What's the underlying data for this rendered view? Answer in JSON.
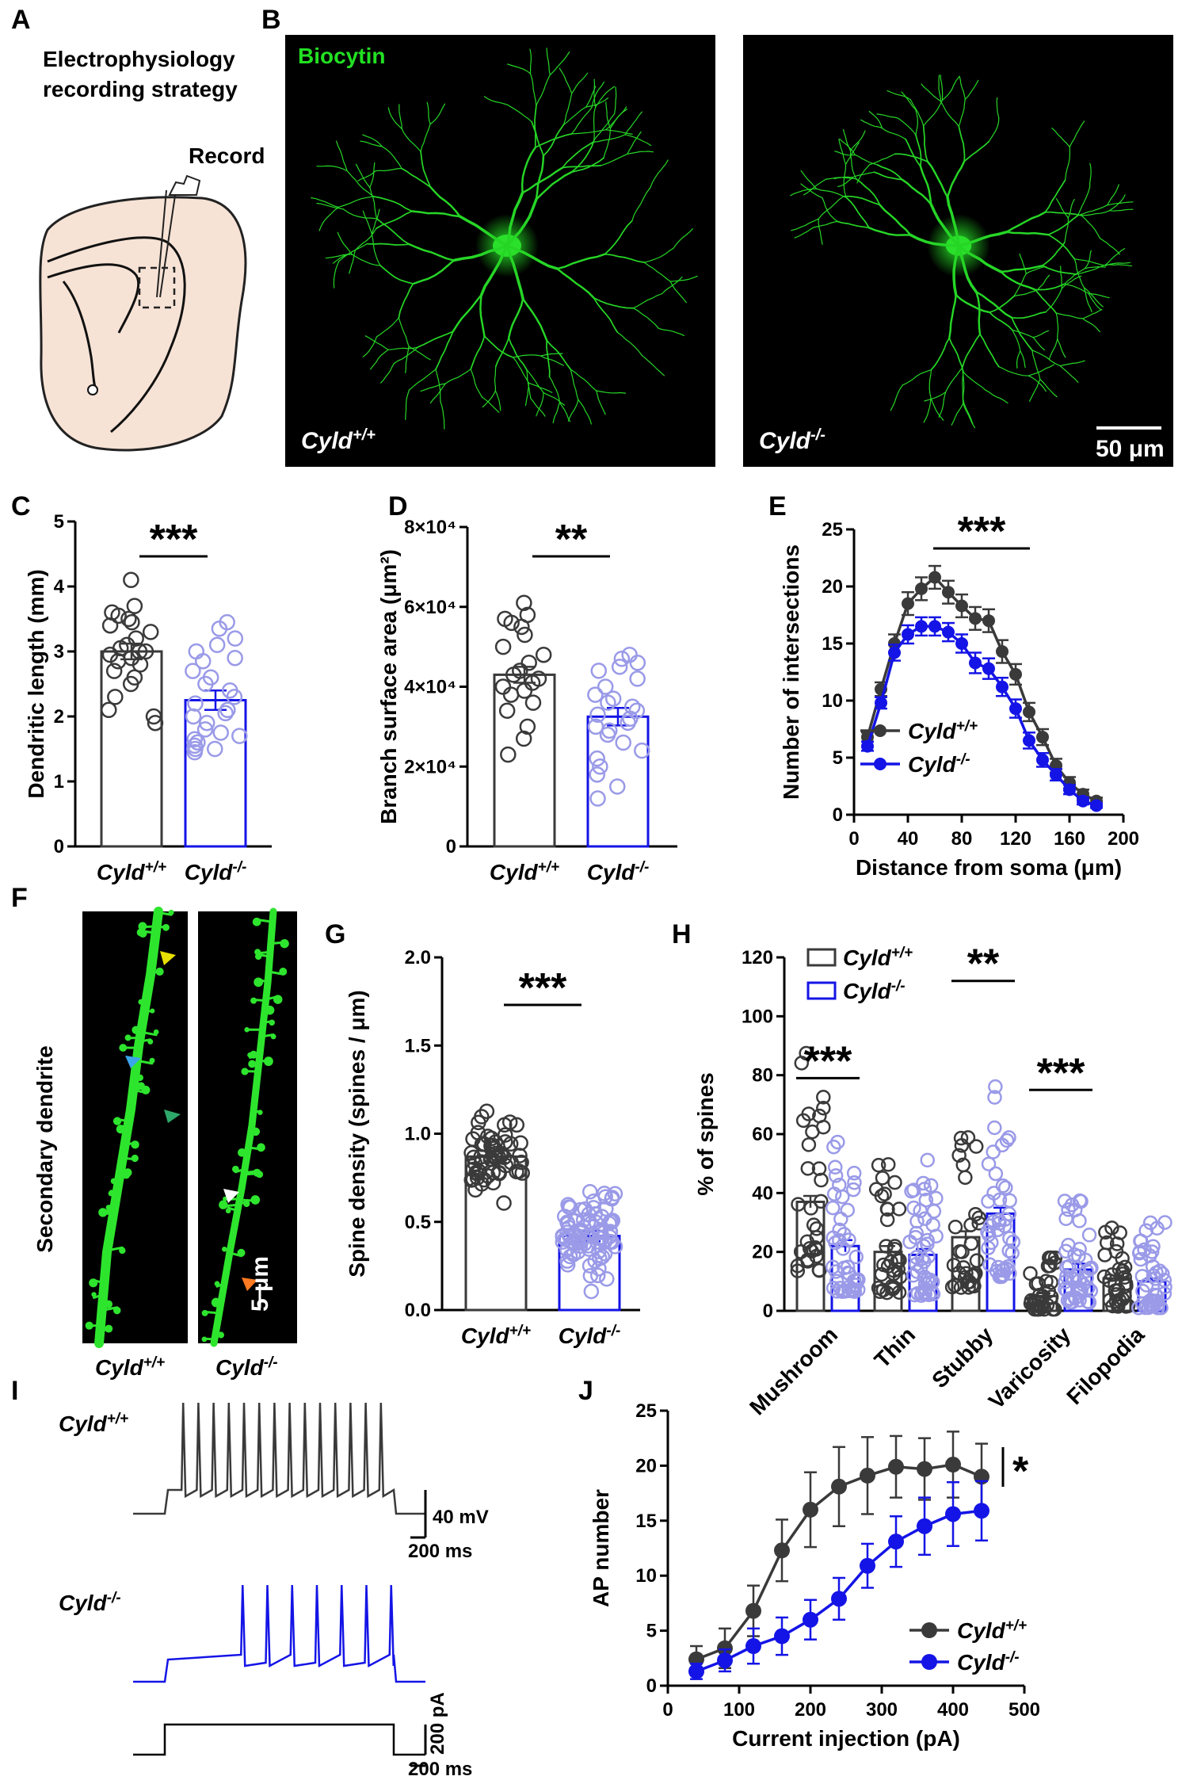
{
  "panels": {
    "A": "A",
    "B": "B",
    "C": "C",
    "D": "D",
    "E": "E",
    "F": "F",
    "G": "G",
    "H": "H",
    "I": "I",
    "J": "J"
  },
  "groups": {
    "wt": "Cyld",
    "wt_sup": "+/+",
    "ko": "Cyld",
    "ko_sup": "-/-"
  },
  "colors": {
    "wt": "#3a3a3a",
    "ko": "#1414e6",
    "ko_light": "#9a9ae8",
    "green": "#22e022"
  },
  "panel_a": {
    "title_line1": "Electrophysiology",
    "title_line2": "recording strategy",
    "record_label": "Record"
  },
  "panel_b": {
    "stain_label": "Biocytin",
    "scale_label": "50 μm"
  },
  "panel_f": {
    "side_label": "Secondary  dendrite",
    "scale_label": "5 μm"
  },
  "panel_i": {
    "scale_v": "40 mV",
    "scale_t1": "200 ms",
    "scale_pa": "200 pA",
    "scale_t2": "200 ms"
  },
  "chart_data": [
    {
      "id": "C",
      "type": "bar",
      "title": "",
      "ylabel": "Dendritic length (mm)",
      "ylim": [
        0,
        5
      ],
      "yticks": [
        "0",
        "1",
        "2",
        "3",
        "4",
        "5"
      ],
      "categories": [
        "Cyld+/+",
        "Cyld-/-"
      ],
      "values": [
        3.0,
        2.25
      ],
      "errors": [
        0.12,
        0.15
      ],
      "significance": "***",
      "points": [
        [
          4.1,
          3.7,
          3.6,
          3.55,
          3.5,
          3.45,
          3.4,
          3.3,
          3.2,
          3.1,
          3.05,
          3.0,
          3.0,
          2.95,
          2.9,
          2.85,
          2.8,
          2.7,
          2.6,
          2.5,
          2.3,
          2.1,
          2.0,
          1.9
        ],
        [
          3.45,
          3.35,
          3.2,
          3.1,
          3.0,
          2.9,
          2.85,
          2.7,
          2.6,
          2.5,
          2.4,
          2.3,
          2.2,
          2.1,
          2.05,
          2.0,
          1.9,
          1.8,
          1.75,
          1.7,
          1.65,
          1.6,
          1.55,
          1.5,
          1.5,
          1.45
        ]
      ]
    },
    {
      "id": "D",
      "type": "bar",
      "title": "",
      "ylabel": "Branch surface area (μm²)",
      "ylim": [
        0,
        80000
      ],
      "yticks": [
        "0",
        "2×10⁴",
        "4×10⁴",
        "6×10⁴",
        "8×10⁴"
      ],
      "categories": [
        "Cyld+/+",
        "Cyld-/-"
      ],
      "values": [
        43000,
        32500
      ],
      "errors": [
        2000,
        2200
      ],
      "significance": "**",
      "points": [
        [
          61000,
          58000,
          57000,
          56000,
          55000,
          53000,
          50000,
          48000,
          46000,
          44000,
          43000,
          42000,
          41000,
          40000,
          39000,
          38000,
          36000,
          34000,
          30000,
          27000,
          23000
        ],
        [
          48000,
          47000,
          46000,
          45000,
          44000,
          42000,
          40000,
          38000,
          37000,
          36000,
          35000,
          34000,
          33000,
          32000,
          31000,
          30000,
          29000,
          28000,
          26000,
          24000,
          22000,
          20000,
          18000,
          15000,
          12000
        ]
      ]
    },
    {
      "id": "E",
      "type": "line",
      "title": "",
      "xlabel": "Distance from soma (μm)",
      "ylabel": "Number of intersections",
      "xlim": [
        0,
        200
      ],
      "ylim": [
        0,
        25
      ],
      "xticks": [
        "0",
        "40",
        "80",
        "120",
        "160",
        "200"
      ],
      "yticks": [
        "0",
        "5",
        "10",
        "15",
        "20",
        "25"
      ],
      "significance": "***",
      "legend": "bottom-left",
      "x": [
        10,
        20,
        30,
        40,
        50,
        60,
        70,
        80,
        90,
        100,
        110,
        120,
        130,
        140,
        150,
        160,
        170,
        180
      ],
      "series": [
        {
          "name": "Cyld+/+",
          "values": [
            6.8,
            11.0,
            15.0,
            18.5,
            19.8,
            20.8,
            19.5,
            18.3,
            17.2,
            17.0,
            14.3,
            12.3,
            9.0,
            6.8,
            4.3,
            2.8,
            1.8,
            1.2
          ],
          "errors": [
            0.4,
            0.6,
            0.8,
            1.0,
            1.0,
            1.0,
            1.0,
            1.0,
            1.0,
            1.0,
            1.0,
            0.9,
            0.8,
            0.7,
            0.6,
            0.5,
            0.4,
            0.3
          ]
        },
        {
          "name": "Cyld-/-",
          "values": [
            6.0,
            9.8,
            14.2,
            15.8,
            16.5,
            16.5,
            16.0,
            15.0,
            13.3,
            12.8,
            11.2,
            9.3,
            6.5,
            4.8,
            3.5,
            2.2,
            1.2,
            0.8
          ],
          "errors": [
            0.4,
            0.5,
            0.7,
            0.8,
            0.8,
            0.8,
            0.8,
            0.8,
            0.9,
            0.9,
            0.8,
            0.8,
            0.7,
            0.6,
            0.5,
            0.4,
            0.3,
            0.2
          ]
        }
      ]
    },
    {
      "id": "G",
      "type": "bar",
      "title": "",
      "ylabel": "Spine density (spines / μm)",
      "ylim": [
        0,
        2.0
      ],
      "yticks": [
        "0.0",
        "0.5",
        "1.0",
        "1.5",
        "2.0"
      ],
      "categories": [
        "Cyld+/+",
        "Cyld-/-"
      ],
      "values": [
        0.87,
        0.42
      ],
      "errors": [
        0.035,
        0.03
      ],
      "significance": "***"
    },
    {
      "id": "H",
      "type": "bar",
      "title": "",
      "ylabel": "% of spines",
      "ylim": [
        0,
        120
      ],
      "yticks": [
        "0",
        "20",
        "40",
        "60",
        "80",
        "100",
        "120"
      ],
      "categories": [
        "Mushroom",
        "Thin",
        "Stubby",
        "Varicosity",
        "Filopodia"
      ],
      "legend": "top-left",
      "series": [
        {
          "name": "Cyld+/+",
          "values": [
            37,
            20,
            25,
            5,
            11
          ],
          "errors": [
            2,
            2,
            2,
            1,
            1
          ]
        },
        {
          "name": "Cyld-/-",
          "values": [
            22,
            19,
            33,
            14,
            10
          ],
          "errors": [
            2,
            2,
            2,
            2,
            1
          ]
        }
      ],
      "significance": [
        {
          "group": "Mushroom",
          "label": "***"
        },
        {
          "group": "Stubby",
          "label": "**"
        },
        {
          "group": "Varicosity",
          "label": "***"
        }
      ]
    },
    {
      "id": "J",
      "type": "line",
      "title": "",
      "xlabel": "Current injection (pA)",
      "ylabel": "AP number",
      "xlim": [
        0,
        500
      ],
      "ylim": [
        0,
        25
      ],
      "xticks": [
        "0",
        "100",
        "200",
        "300",
        "400",
        "500"
      ],
      "yticks": [
        "0",
        "5",
        "10",
        "15",
        "20",
        "25"
      ],
      "significance": "*",
      "legend": "bottom-right",
      "x": [
        40,
        80,
        120,
        160,
        200,
        240,
        280,
        320,
        360,
        400,
        440
      ],
      "series": [
        {
          "name": "Cyld+/+",
          "values": [
            2.4,
            3.4,
            6.8,
            12.3,
            16.0,
            18.1,
            19.1,
            19.9,
            19.7,
            20.1,
            19.0
          ],
          "errors": [
            1.2,
            1.8,
            2.3,
            2.8,
            3.4,
            3.6,
            3.5,
            2.8,
            2.8,
            3.0,
            3.0
          ]
        },
        {
          "name": "Cyld-/-",
          "values": [
            1.3,
            2.3,
            3.6,
            4.5,
            6.0,
            7.9,
            10.9,
            13.1,
            14.5,
            15.6,
            15.9
          ],
          "errors": [
            0.7,
            1.0,
            1.6,
            1.7,
            1.8,
            1.9,
            2.0,
            2.3,
            2.6,
            2.9,
            2.7
          ]
        }
      ]
    }
  ]
}
